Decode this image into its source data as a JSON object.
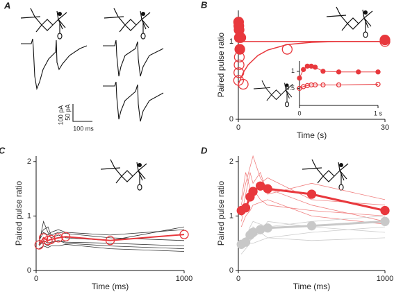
{
  "panel_a": {
    "label": "A",
    "scale_bar": [
      "100 pA",
      "50 pA",
      "100 ms"
    ]
  },
  "chart_data": [
    {
      "type": "line",
      "label": "B",
      "xlabel": "Time (s)",
      "ylabel": "Paired pulse ratio",
      "xlim": [
        0,
        30
      ],
      "ylim": [
        0,
        1.4
      ],
      "xticks": [
        0,
        30
      ],
      "yticks": [
        0,
        1
      ],
      "series": [
        {
          "color": "#e8383d",
          "marker": "none",
          "line": true,
          "width": 1.5,
          "x": [
            0,
            0.5,
            1,
            2,
            5,
            30
          ],
          "values": [
            1.25,
            1.05,
            1.0,
            1.0,
            1.0,
            1.0
          ]
        },
        {
          "color": "#e8383d",
          "marker": "none",
          "line": true,
          "width": 1.5,
          "x": [
            0,
            1,
            2,
            4,
            6,
            10,
            15,
            20,
            30
          ],
          "values": [
            0.45,
            0.6,
            0.7,
            0.82,
            0.89,
            0.96,
            0.99,
            1.0,
            1.0
          ]
        },
        {
          "color": "#e8383d",
          "marker": "filled",
          "line": false,
          "size": 7,
          "x": [
            0.05,
            0.1,
            0.15,
            0.2,
            0.3,
            0.5,
            30
          ],
          "values": [
            1.25,
            1.2,
            1.15,
            1.05,
            0.9,
            1.05,
            1.02
          ]
        },
        {
          "color": "#e8383d",
          "marker": "open",
          "line": false,
          "size": 7,
          "x": [
            0.05,
            0.1,
            0.15,
            0.2,
            1,
            10,
            30
          ],
          "values": [
            0.5,
            0.6,
            0.7,
            0.8,
            0.45,
            0.9,
            1.0
          ]
        }
      ],
      "inset": {
        "xlim": [
          0,
          1
        ],
        "ylim": [
          0,
          1.3
        ],
        "xticks": [
          0,
          {
            "value": 1,
            "label": "1 s"
          }
        ],
        "yticks": [
          0.5,
          1
        ],
        "series": [
          {
            "color": "#e8383d",
            "marker": "filled",
            "line": true,
            "width": 1,
            "size": 3,
            "x": [
              0,
              0.05,
              0.1,
              0.15,
              0.2,
              0.3,
              0.5,
              0.75,
              1
            ],
            "values": [
              0.8,
              1.05,
              1.15,
              1.15,
              1.12,
              1.0,
              0.98,
              0.98,
              0.98
            ]
          },
          {
            "color": "#e8383d",
            "marker": "open",
            "line": true,
            "width": 1,
            "size": 3,
            "x": [
              0,
              0.05,
              0.1,
              0.15,
              0.2,
              0.3,
              0.5,
              1
            ],
            "values": [
              0.5,
              0.55,
              0.58,
              0.6,
              0.6,
              0.6,
              0.6,
              0.62
            ]
          }
        ]
      }
    },
    {
      "type": "line",
      "label": "C",
      "xlabel": "Time (ms)",
      "ylabel": "Paired pulse ratio",
      "xlim": [
        0,
        1000
      ],
      "ylim": [
        0,
        2.1
      ],
      "xticks": [
        0,
        1000
      ],
      "yticks": [
        0,
        1,
        2
      ],
      "x": [
        20,
        50,
        80,
        100,
        150,
        200,
        500,
        1000
      ],
      "series": [
        {
          "color": "#333333",
          "marker": "none",
          "line": true,
          "width": 0.8,
          "values": [
            0.5,
            0.9,
            0.7,
            0.6,
            0.65,
            0.6,
            0.55,
            0.8
          ]
        },
        {
          "color": "#333333",
          "marker": "none",
          "line": true,
          "width": 0.8,
          "values": [
            0.45,
            0.55,
            0.5,
            0.52,
            0.55,
            0.5,
            0.45,
            0.4
          ]
        },
        {
          "color": "#333333",
          "marker": "none",
          "line": true,
          "width": 0.8,
          "values": [
            0.55,
            0.7,
            0.65,
            0.7,
            0.75,
            0.7,
            0.65,
            0.75
          ]
        },
        {
          "color": "#333333",
          "marker": "none",
          "line": true,
          "width": 0.8,
          "values": [
            0.4,
            0.45,
            0.42,
            0.45,
            0.45,
            0.48,
            0.4,
            0.35
          ]
        },
        {
          "color": "#333333",
          "marker": "none",
          "line": true,
          "width": 0.8,
          "values": [
            0.6,
            0.75,
            0.8,
            0.65,
            0.7,
            0.68,
            0.6,
            0.55
          ]
        },
        {
          "color": "#333333",
          "marker": "none",
          "line": true,
          "width": 0.8,
          "values": [
            0.5,
            0.5,
            0.45,
            0.5,
            0.55,
            0.52,
            0.5,
            0.45
          ]
        },
        {
          "color": "#e8383d",
          "marker": "open",
          "line": true,
          "width": 2,
          "size": 6,
          "values": [
            0.47,
            0.6,
            0.55,
            0.57,
            0.6,
            0.62,
            0.55,
            0.66
          ]
        }
      ]
    },
    {
      "type": "line",
      "label": "D",
      "xlabel": "Time (ms)",
      "ylabel": "Paired pulse ratio",
      "xlim": [
        0,
        1000
      ],
      "ylim": [
        0,
        2.1
      ],
      "xticks": [
        0,
        1000
      ],
      "yticks": [
        0,
        1,
        2
      ],
      "x": [
        20,
        50,
        80,
        100,
        150,
        200,
        500,
        1000
      ],
      "series": [
        {
          "color": "#f08080",
          "marker": "none",
          "line": true,
          "width": 0.8,
          "values": [
            1.2,
            1.6,
            1.9,
            2.1,
            1.7,
            1.5,
            1.2,
            0.9
          ]
        },
        {
          "color": "#f08080",
          "marker": "none",
          "line": true,
          "width": 0.8,
          "values": [
            1.0,
            1.4,
            1.8,
            1.6,
            1.8,
            1.4,
            1.6,
            1.3
          ]
        },
        {
          "color": "#f08080",
          "marker": "none",
          "line": true,
          "width": 0.8,
          "values": [
            0.9,
            1.2,
            1.3,
            1.5,
            1.3,
            1.2,
            1.1,
            1.0
          ]
        },
        {
          "color": "#f08080",
          "marker": "none",
          "line": true,
          "width": 0.8,
          "values": [
            1.3,
            1.8,
            1.5,
            1.4,
            1.6,
            1.7,
            1.3,
            1.2
          ]
        },
        {
          "color": "#f08080",
          "marker": "none",
          "line": true,
          "width": 0.8,
          "values": [
            0.8,
            1.0,
            1.1,
            1.2,
            1.25,
            1.3,
            1.0,
            0.85
          ]
        },
        {
          "color": "#cccccc",
          "marker": "none",
          "line": true,
          "width": 0.8,
          "values": [
            0.5,
            0.6,
            0.8,
            0.9,
            0.85,
            0.8,
            0.9,
            1.0
          ]
        },
        {
          "color": "#cccccc",
          "marker": "none",
          "line": true,
          "width": 0.8,
          "values": [
            0.4,
            0.45,
            0.55,
            0.6,
            0.7,
            0.6,
            0.7,
            0.8
          ]
        },
        {
          "color": "#cccccc",
          "marker": "none",
          "line": true,
          "width": 0.8,
          "values": [
            0.45,
            0.5,
            0.6,
            0.8,
            0.7,
            0.9,
            0.8,
            0.7
          ]
        },
        {
          "color": "#cccccc",
          "marker": "none",
          "line": true,
          "width": 0.8,
          "values": [
            0.3,
            0.4,
            0.5,
            0.5,
            0.55,
            0.6,
            0.55,
            0.6
          ]
        },
        {
          "color": "#c8c8c8",
          "marker": "filled",
          "line": true,
          "width": 3,
          "size": 6,
          "values": [
            0.48,
            0.52,
            0.65,
            0.7,
            0.75,
            0.78,
            0.82,
            0.9
          ]
        },
        {
          "color": "#e8383d",
          "marker": "filled",
          "line": true,
          "width": 3,
          "size": 6,
          "values": [
            1.1,
            1.15,
            1.35,
            1.45,
            1.55,
            1.5,
            1.4,
            1.1
          ]
        }
      ]
    }
  ]
}
